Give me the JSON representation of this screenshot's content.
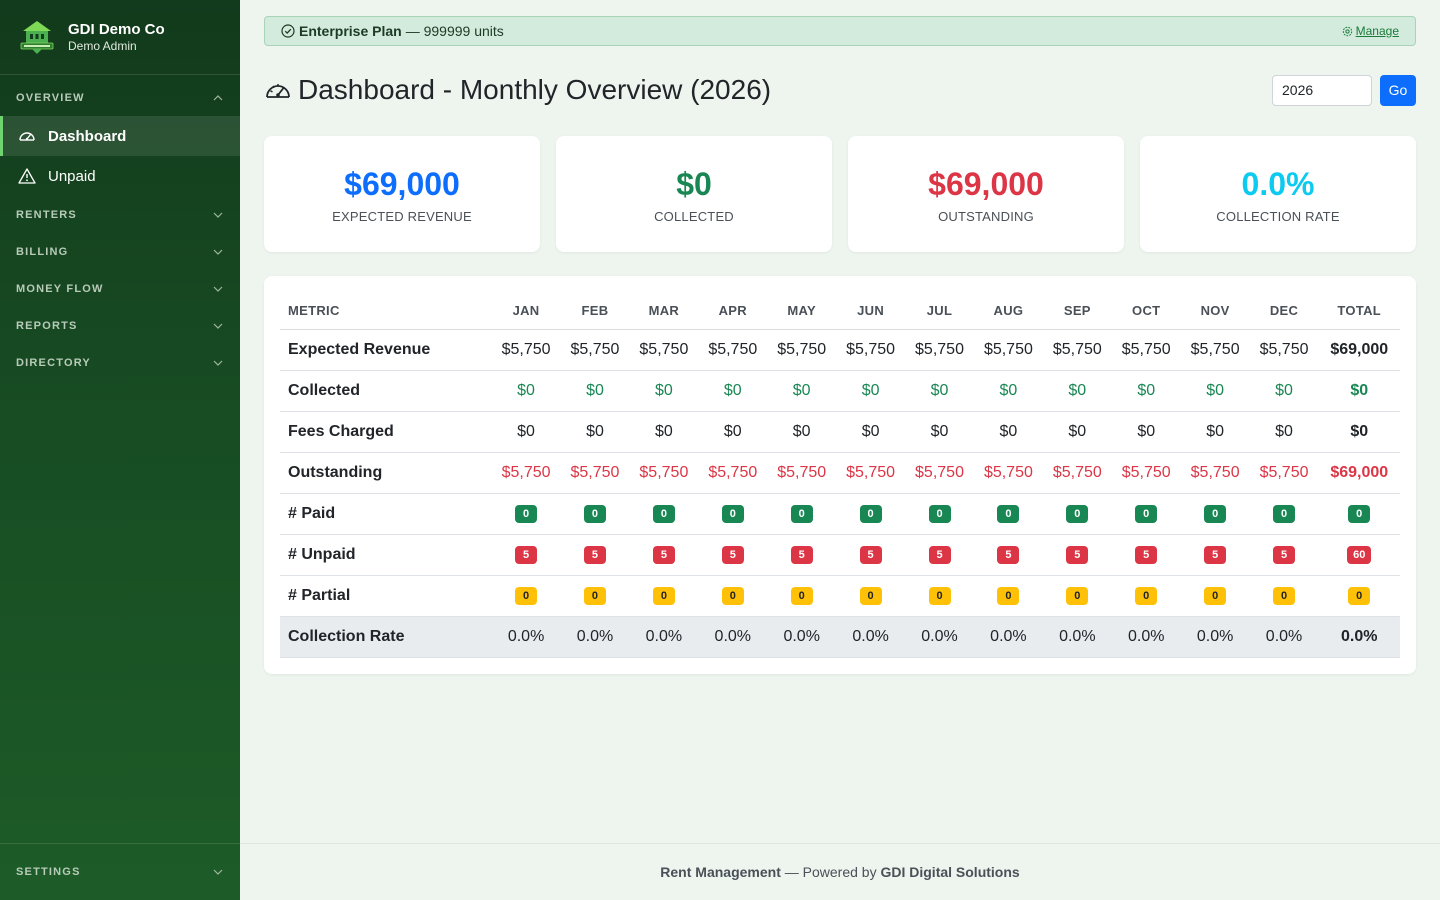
{
  "brand": {
    "name": "GDI Demo Co",
    "role": "Demo Admin"
  },
  "sidebar": {
    "sections": [
      {
        "label": "OVERVIEW",
        "expanded": true,
        "items": [
          {
            "label": "Dashboard",
            "icon": "speedometer-icon",
            "active": true
          },
          {
            "label": "Unpaid",
            "icon": "warning-icon",
            "active": false
          }
        ]
      },
      {
        "label": "RENTERS",
        "expanded": false
      },
      {
        "label": "BILLING",
        "expanded": false
      },
      {
        "label": "MONEY FLOW",
        "expanded": false
      },
      {
        "label": "REPORTS",
        "expanded": false
      },
      {
        "label": "DIRECTORY",
        "expanded": false
      }
    ],
    "bottom": {
      "label": "SETTINGS"
    }
  },
  "plan": {
    "name": "Enterprise Plan",
    "units": "— 999999 units",
    "manage_label": "Manage"
  },
  "page": {
    "title": "Dashboard - Monthly Overview (2026)",
    "year_value": "2026",
    "go_label": "Go"
  },
  "cards": [
    {
      "value": "$69,000",
      "label": "EXPECTED REVENUE",
      "color": "#0d6efd"
    },
    {
      "value": "$0",
      "label": "COLLECTED",
      "color": "#198754"
    },
    {
      "value": "$69,000",
      "label": "OUTSTANDING",
      "color": "#dc3545"
    },
    {
      "value": "0.0%",
      "label": "COLLECTION RATE",
      "color": "#0dcaf0"
    }
  ],
  "table": {
    "headers": [
      "METRIC",
      "JAN",
      "FEB",
      "MAR",
      "APR",
      "MAY",
      "JUN",
      "JUL",
      "AUG",
      "SEP",
      "OCT",
      "NOV",
      "DEC",
      "TOTAL"
    ],
    "rows": [
      {
        "label": "Expected Revenue",
        "style": "plain",
        "values": [
          "$5,750",
          "$5,750",
          "$5,750",
          "$5,750",
          "$5,750",
          "$5,750",
          "$5,750",
          "$5,750",
          "$5,750",
          "$5,750",
          "$5,750",
          "$5,750"
        ],
        "total": "$69,000"
      },
      {
        "label": "Collected",
        "style": "green",
        "values": [
          "$0",
          "$0",
          "$0",
          "$0",
          "$0",
          "$0",
          "$0",
          "$0",
          "$0",
          "$0",
          "$0",
          "$0"
        ],
        "total": "$0"
      },
      {
        "label": "Fees Charged",
        "style": "plain",
        "values": [
          "$0",
          "$0",
          "$0",
          "$0",
          "$0",
          "$0",
          "$0",
          "$0",
          "$0",
          "$0",
          "$0",
          "$0"
        ],
        "total": "$0"
      },
      {
        "label": "Outstanding",
        "style": "red",
        "values": [
          "$5,750",
          "$5,750",
          "$5,750",
          "$5,750",
          "$5,750",
          "$5,750",
          "$5,750",
          "$5,750",
          "$5,750",
          "$5,750",
          "$5,750",
          "$5,750"
        ],
        "total": "$69,000"
      },
      {
        "label": "# Paid",
        "style": "badge-g",
        "values": [
          "0",
          "0",
          "0",
          "0",
          "0",
          "0",
          "0",
          "0",
          "0",
          "0",
          "0",
          "0"
        ],
        "total": "0"
      },
      {
        "label": "# Unpaid",
        "style": "badge-r",
        "values": [
          "5",
          "5",
          "5",
          "5",
          "5",
          "5",
          "5",
          "5",
          "5",
          "5",
          "5",
          "5"
        ],
        "total": "60"
      },
      {
        "label": "# Partial",
        "style": "badge-y",
        "values": [
          "0",
          "0",
          "0",
          "0",
          "0",
          "0",
          "0",
          "0",
          "0",
          "0",
          "0",
          "0"
        ],
        "total": "0"
      },
      {
        "label": "Collection Rate",
        "style": "rate",
        "values": [
          "0.0%",
          "0.0%",
          "0.0%",
          "0.0%",
          "0.0%",
          "0.0%",
          "0.0%",
          "0.0%",
          "0.0%",
          "0.0%",
          "0.0%",
          "0.0%"
        ],
        "total": "0.0%"
      }
    ]
  },
  "footer": {
    "app": "Rent Management",
    "middle": " — Powered by ",
    "company": "GDI Digital Solutions"
  }
}
